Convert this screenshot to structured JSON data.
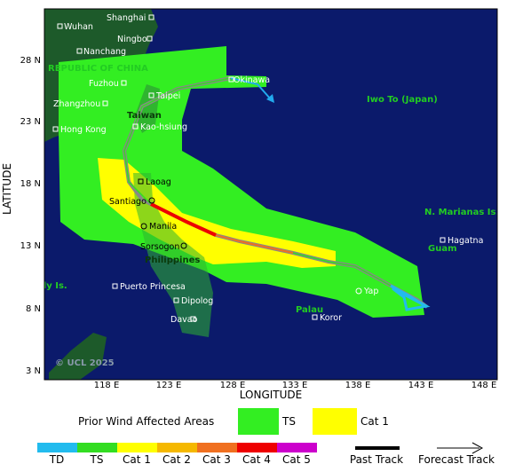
{
  "map": {
    "axes": {
      "x_label": "LONGITUDE",
      "y_label": "LATITUDE",
      "x_ticks": [
        "118 E",
        "123 E",
        "128 E",
        "133 E",
        "138 E",
        "143 E",
        "148 E"
      ],
      "y_ticks": [
        "28 N",
        "23 N",
        "18 N",
        "13 N",
        "8 N",
        "3 N"
      ]
    },
    "places": {
      "wuhan": "Wuhan",
      "shanghai": "Shanghai",
      "ningbo": "Ningbo",
      "nanchang": "Nanchang",
      "roc": "REPUBLIC OF CHINA",
      "fuzhou": "Fuzhou",
      "taipei": "Taipei",
      "okinawa": "Okinawa",
      "zhangzhou": "Zhangzhou",
      "taiwan": "Taiwan",
      "hongkong": "Hong Kong",
      "kaohsiung": "Kao-hsiung",
      "iwoto": "Iwo To (Japan)",
      "laoag": "Laoag",
      "santiago": "Santiago",
      "manila": "Manila",
      "marianas": "N. Marianas Is.",
      "hagatna": "Hagatna",
      "guam": "Guam",
      "sorsogon": "Sorsogon",
      "philippines": "Philippines",
      "spratly": "Spratly Is.",
      "puerto": "Puerto Princesa",
      "yap": "Yap",
      "palau": "Palau",
      "dipolog": "Dipolog",
      "koror": "Koror",
      "davao": "Davao"
    },
    "copyright": "© UCL 2025"
  },
  "legend": {
    "areas_title": "Prior Wind Affected Areas",
    "areas": [
      "TS",
      "Cat 1"
    ],
    "scale": [
      "TD",
      "TS",
      "Cat 1",
      "Cat 2",
      "Cat 3",
      "Cat 4",
      "Cat 5"
    ],
    "past": "Past Track",
    "forecast": "Forecast Track"
  }
}
